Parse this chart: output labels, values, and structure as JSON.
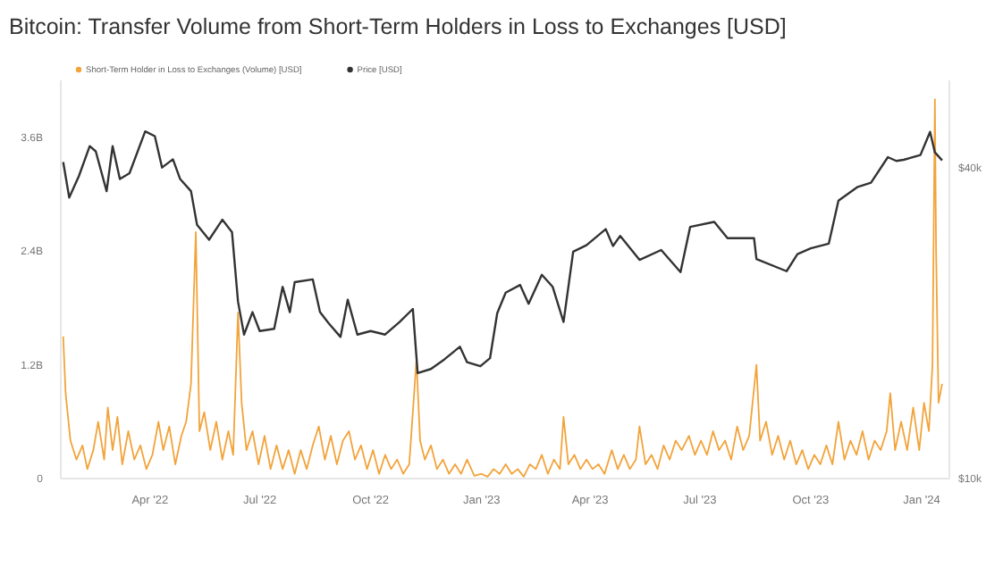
{
  "chart_data": {
    "type": "line",
    "title": "Bitcoin: Transfer Volume from Short-Term Holders in Loss to Exchanges [USD]",
    "legend": "top left",
    "log": "y2",
    "grid": false,
    "xlim": [
      "2022-01-17",
      "2024-01-24"
    ],
    "xticks": [
      {
        "value": "2022-04-01",
        "label": "Apr '22"
      },
      {
        "value": "2022-07-01",
        "label": "Jul '22"
      },
      {
        "value": "2022-10-01",
        "label": "Oct '22"
      },
      {
        "value": "2023-01-01",
        "label": "Jan '23"
      },
      {
        "value": "2023-04-01",
        "label": "Apr '23"
      },
      {
        "value": "2023-07-01",
        "label": "Jul '23"
      },
      {
        "value": "2023-10-01",
        "label": "Oct '23"
      },
      {
        "value": "2024-01-01",
        "label": "Jan '24"
      }
    ],
    "ylim": [
      0,
      4200000000.0
    ],
    "yticks": [
      0,
      {
        "value": 1200000000.0,
        "label": "1.2B"
      },
      {
        "value": 2400000000.0,
        "label": "2.4B"
      },
      {
        "value": 3600000000.0,
        "label": "3.6B"
      }
    ],
    "y2lim": [
      10000,
      59000
    ],
    "y2ticks": [
      {
        "value": 10000,
        "label": "$10k"
      },
      {
        "value": 40000,
        "label": "$40k"
      }
    ],
    "series": [
      {
        "name": "Short-Term Holder in Loss to Exchanges (Volume) [USD]",
        "color": "#f2a33a",
        "x": [
          "2022-01-19",
          "2022-01-21",
          "2022-01-25",
          "2022-01-30",
          "2022-02-04",
          "2022-02-08",
          "2022-02-13",
          "2022-02-17",
          "2022-02-22",
          "2022-02-25",
          "2022-03-01",
          "2022-03-05",
          "2022-03-09",
          "2022-03-14",
          "2022-03-19",
          "2022-03-24",
          "2022-03-29",
          "2022-04-03",
          "2022-04-08",
          "2022-04-12",
          "2022-04-17",
          "2022-04-22",
          "2022-04-27",
          "2022-05-01",
          "2022-05-05",
          "2022-05-09",
          "2022-05-12",
          "2022-05-16",
          "2022-05-21",
          "2022-05-26",
          "2022-05-31",
          "2022-06-05",
          "2022-06-09",
          "2022-06-13",
          "2022-06-16",
          "2022-06-20",
          "2022-06-25",
          "2022-06-30",
          "2022-07-05",
          "2022-07-10",
          "2022-07-15",
          "2022-07-20",
          "2022-07-25",
          "2022-07-30",
          "2022-08-04",
          "2022-08-09",
          "2022-08-14",
          "2022-08-19",
          "2022-08-24",
          "2022-08-29",
          "2022-09-03",
          "2022-09-08",
          "2022-09-13",
          "2022-09-18",
          "2022-09-23",
          "2022-09-28",
          "2022-10-03",
          "2022-10-08",
          "2022-10-13",
          "2022-10-18",
          "2022-10-23",
          "2022-10-28",
          "2022-11-02",
          "2022-11-08",
          "2022-11-11",
          "2022-11-15",
          "2022-11-20",
          "2022-11-25",
          "2022-11-30",
          "2022-12-05",
          "2022-12-10",
          "2022-12-15",
          "2022-12-20",
          "2022-12-26",
          "2023-01-01",
          "2023-01-06",
          "2023-01-11",
          "2023-01-16",
          "2023-01-21",
          "2023-01-26",
          "2023-01-31",
          "2023-02-05",
          "2023-02-10",
          "2023-02-15",
          "2023-02-20",
          "2023-02-25",
          "2023-03-02",
          "2023-03-07",
          "2023-03-10",
          "2023-03-14",
          "2023-03-19",
          "2023-03-24",
          "2023-03-29",
          "2023-04-03",
          "2023-04-08",
          "2023-04-13",
          "2023-04-19",
          "2023-04-24",
          "2023-04-29",
          "2023-05-04",
          "2023-05-09",
          "2023-05-12",
          "2023-05-17",
          "2023-05-22",
          "2023-05-27",
          "2023-06-01",
          "2023-06-06",
          "2023-06-11",
          "2023-06-16",
          "2023-06-22",
          "2023-06-27",
          "2023-07-02",
          "2023-07-07",
          "2023-07-12",
          "2023-07-17",
          "2023-07-22",
          "2023-07-27",
          "2023-08-01",
          "2023-08-06",
          "2023-08-11",
          "2023-08-17",
          "2023-08-20",
          "2023-08-25",
          "2023-08-30",
          "2023-09-04",
          "2023-09-09",
          "2023-09-14",
          "2023-09-19",
          "2023-09-24",
          "2023-09-29",
          "2023-10-04",
          "2023-10-09",
          "2023-10-14",
          "2023-10-19",
          "2023-10-24",
          "2023-10-29",
          "2023-11-03",
          "2023-11-08",
          "2023-11-13",
          "2023-11-18",
          "2023-11-23",
          "2023-11-28",
          "2023-12-03",
          "2023-12-06",
          "2023-12-10",
          "2023-12-15",
          "2023-12-20",
          "2023-12-25",
          "2023-12-30",
          "2024-01-03",
          "2024-01-07",
          "2024-01-10",
          "2024-01-12",
          "2024-01-13",
          "2024-01-15",
          "2024-01-18"
        ],
        "values": [
          1500000000.0,
          900000000.0,
          400000000.0,
          200000000.0,
          350000000.0,
          100000000.0,
          300000000.0,
          600000000.0,
          200000000.0,
          750000000.0,
          300000000.0,
          650000000.0,
          150000000.0,
          500000000.0,
          200000000.0,
          350000000.0,
          100000000.0,
          250000000.0,
          600000000.0,
          300000000.0,
          550000000.0,
          150000000.0,
          450000000.0,
          600000000.0,
          1000000000.0,
          2600000000.0,
          500000000.0,
          700000000.0,
          300000000.0,
          600000000.0,
          200000000.0,
          500000000.0,
          250000000.0,
          1750000000.0,
          800000000.0,
          300000000.0,
          500000000.0,
          150000000.0,
          450000000.0,
          100000000.0,
          350000000.0,
          100000000.0,
          300000000.0,
          50000000.0,
          300000000.0,
          100000000.0,
          350000000.0,
          550000000.0,
          200000000.0,
          450000000.0,
          150000000.0,
          400000000.0,
          500000000.0,
          200000000.0,
          350000000.0,
          100000000.0,
          300000000.0,
          50000000.0,
          250000000.0,
          100000000.0,
          200000000.0,
          50000000.0,
          150000000.0,
          1250000000.0,
          400000000.0,
          200000000.0,
          350000000.0,
          100000000.0,
          200000000.0,
          50000000.0,
          150000000.0,
          50000000.0,
          200000000.0,
          30000000.0,
          50000000.0,
          20000000.0,
          100000000.0,
          50000000.0,
          150000000.0,
          50000000.0,
          100000000.0,
          20000000.0,
          150000000.0,
          100000000.0,
          250000000.0,
          50000000.0,
          200000000.0,
          100000000.0,
          650000000.0,
          150000000.0,
          250000000.0,
          100000000.0,
          200000000.0,
          100000000.0,
          150000000.0,
          50000000.0,
          300000000.0,
          100000000.0,
          250000000.0,
          100000000.0,
          200000000.0,
          550000000.0,
          150000000.0,
          250000000.0,
          100000000.0,
          350000000.0,
          200000000.0,
          400000000.0,
          300000000.0,
          450000000.0,
          250000000.0,
          400000000.0,
          250000000.0,
          500000000.0,
          300000000.0,
          400000000.0,
          200000000.0,
          550000000.0,
          300000000.0,
          450000000.0,
          1200000000.0,
          400000000.0,
          600000000.0,
          250000000.0,
          450000000.0,
          200000000.0,
          400000000.0,
          150000000.0,
          300000000.0,
          100000000.0,
          250000000.0,
          150000000.0,
          350000000.0,
          150000000.0,
          600000000.0,
          200000000.0,
          400000000.0,
          250000000.0,
          500000000.0,
          200000000.0,
          400000000.0,
          300000000.0,
          500000000.0,
          900000000.0,
          300000000.0,
          600000000.0,
          300000000.0,
          750000000.0,
          300000000.0,
          800000000.0,
          500000000.0,
          1200000000.0,
          4000000000.0,
          2400000000.0,
          800000000.0,
          1000000000.0
        ]
      },
      {
        "name": "Price [USD]",
        "color": "#333333",
        "axis": "y2",
        "x": [
          "2022-01-19",
          "2022-01-24",
          "2022-02-01",
          "2022-02-10",
          "2022-02-15",
          "2022-02-24",
          "2022-03-01",
          "2022-03-07",
          "2022-03-15",
          "2022-03-28",
          "2022-04-05",
          "2022-04-11",
          "2022-04-20",
          "2022-04-26",
          "2022-05-05",
          "2022-05-10",
          "2022-05-20",
          "2022-05-31",
          "2022-06-08",
          "2022-06-13",
          "2022-06-18",
          "2022-06-25",
          "2022-07-01",
          "2022-07-13",
          "2022-07-20",
          "2022-07-26",
          "2022-07-30",
          "2022-08-14",
          "2022-08-20",
          "2022-08-27",
          "2022-09-06",
          "2022-09-12",
          "2022-09-20",
          "2022-10-01",
          "2022-10-13",
          "2022-10-25",
          "2022-11-05",
          "2022-11-09",
          "2022-11-20",
          "2022-12-01",
          "2022-12-14",
          "2022-12-20",
          "2022-12-31",
          "2023-01-08",
          "2023-01-14",
          "2023-01-21",
          "2023-02-02",
          "2023-02-09",
          "2023-02-20",
          "2023-03-01",
          "2023-03-10",
          "2023-03-18",
          "2023-03-29",
          "2023-04-14",
          "2023-04-20",
          "2023-04-26",
          "2023-05-12",
          "2023-05-30",
          "2023-06-15",
          "2023-06-23",
          "2023-07-13",
          "2023-07-24",
          "2023-08-15",
          "2023-08-17",
          "2023-09-11",
          "2023-09-20",
          "2023-10-01",
          "2023-10-16",
          "2023-10-24",
          "2023-11-09",
          "2023-11-20",
          "2023-12-04",
          "2023-12-11",
          "2023-12-17",
          "2023-12-31",
          "2024-01-08",
          "2024-01-12",
          "2024-01-18"
        ],
        "values": [
          41000,
          35000,
          38500,
          44000,
          43000,
          36000,
          44000,
          38000,
          39000,
          47000,
          46000,
          40000,
          41500,
          38000,
          36000,
          31000,
          29000,
          31700,
          30000,
          22000,
          19000,
          21000,
          19300,
          19500,
          23500,
          21000,
          24000,
          24300,
          21000,
          20000,
          18800,
          22200,
          19000,
          19300,
          19000,
          20100,
          21300,
          16000,
          16300,
          17000,
          18000,
          16800,
          16500,
          17100,
          20900,
          22900,
          23700,
          21800,
          24800,
          23500,
          20100,
          27500,
          28300,
          30400,
          28200,
          29500,
          26500,
          27700,
          25100,
          30700,
          31400,
          29200,
          29200,
          26600,
          25200,
          27200,
          27900,
          28500,
          34500,
          36700,
          37400,
          41900,
          41200,
          41400,
          42300,
          46900,
          42800,
          41300
        ]
      }
    ]
  }
}
